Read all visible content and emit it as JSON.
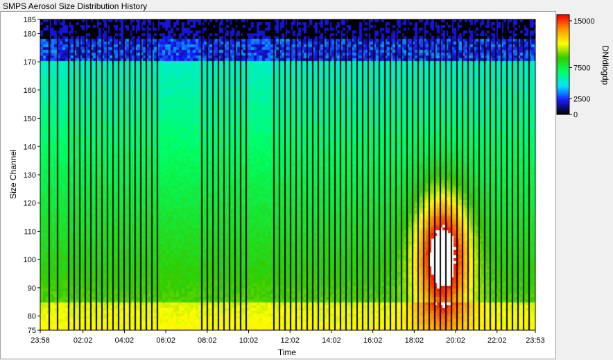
{
  "window": {
    "title": "SMPS Aerosol Size Distribution History"
  },
  "chart_data": {
    "type": "heatmap",
    "title": "SMPS Aerosol Size Distribution History",
    "xlabel": "Time",
    "ylabel": "Size Channel",
    "colorbar_label": "DN/dlogdp",
    "x_tick_labels": [
      "23:58",
      "02:02",
      "04:02",
      "06:02",
      "08:02",
      "10:02",
      "12:02",
      "14:02",
      "16:02",
      "18:02",
      "20:02",
      "22:02",
      "23:53"
    ],
    "x_ticks_hours": [
      -0.0333,
      2.0333,
      4.0333,
      6.0333,
      8.0333,
      10.0333,
      12.0333,
      14.0333,
      16.0333,
      18.0333,
      20.0333,
      22.0333,
      23.8833
    ],
    "xlim_hours": [
      -0.0333,
      23.8833
    ],
    "y_ticks": [
      75,
      80,
      90,
      100,
      110,
      120,
      130,
      140,
      150,
      160,
      170,
      180,
      185
    ],
    "ylim": [
      75,
      185
    ],
    "colorbar_ticks": [
      0,
      2500,
      7500,
      15000
    ],
    "colorbar_range": [
      0,
      16000
    ],
    "colorscale": [
      "#000000",
      "#1a1aff",
      "#00e5ff",
      "#00ff66",
      "#33cc00",
      "#ffff00",
      "#ff9900",
      "#ff0000"
    ],
    "grid": false
  }
}
